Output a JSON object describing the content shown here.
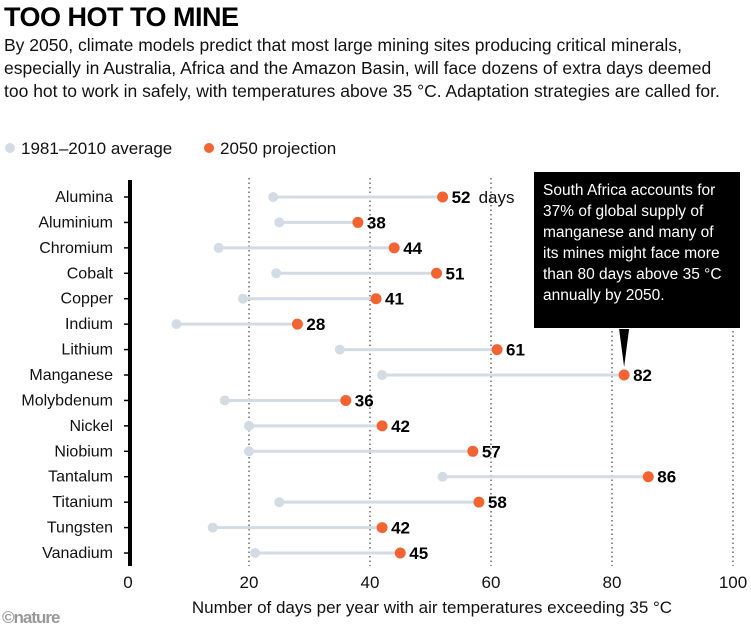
{
  "title": "TOO HOT TO MINE",
  "subtitle": "By 2050, climate models predict that most large mining sites producing critical minerals, especially in Australia, Africa and the Amazon Basin, will face dozens of extra days deemed too hot to work in safely, with temperatures above 35 °C. Adaptation strategies are called for.",
  "annotation": "South Africa accounts for 37% of global supply of manganese and many of its mines might face more than 80 days above 35 °C annually by 2050.",
  "credit": "©nature",
  "chart_data": {
    "type": "dumbbell",
    "xlabel": "Number of days per year with air temperatures exceeding 35 °C",
    "xlim": [
      0,
      100
    ],
    "xticks": [
      0,
      20,
      40,
      60,
      80,
      100
    ],
    "grid": "vertical dotted",
    "legend_position": "top-left",
    "value_unit_label": "days",
    "categories": [
      "Alumina",
      "Aluminium",
      "Chromium",
      "Cobalt",
      "Copper",
      "Indium",
      "Lithium",
      "Manganese",
      "Molybdenum",
      "Nickel",
      "Niobium",
      "Tantalum",
      "Titanium",
      "Tungsten",
      "Vanadium"
    ],
    "series": [
      {
        "name": "1981–2010 average",
        "color": "#d3dce4",
        "values": [
          24,
          25,
          15,
          24.5,
          19,
          8,
          35,
          42,
          16,
          20,
          20,
          52,
          25,
          14,
          21
        ]
      },
      {
        "name": "2050 projection",
        "color": "#f26532",
        "values": [
          52,
          38,
          44,
          51,
          41,
          28,
          61,
          82,
          36,
          42,
          57,
          86,
          58,
          42,
          45
        ]
      }
    ],
    "highlight": "Manganese"
  }
}
